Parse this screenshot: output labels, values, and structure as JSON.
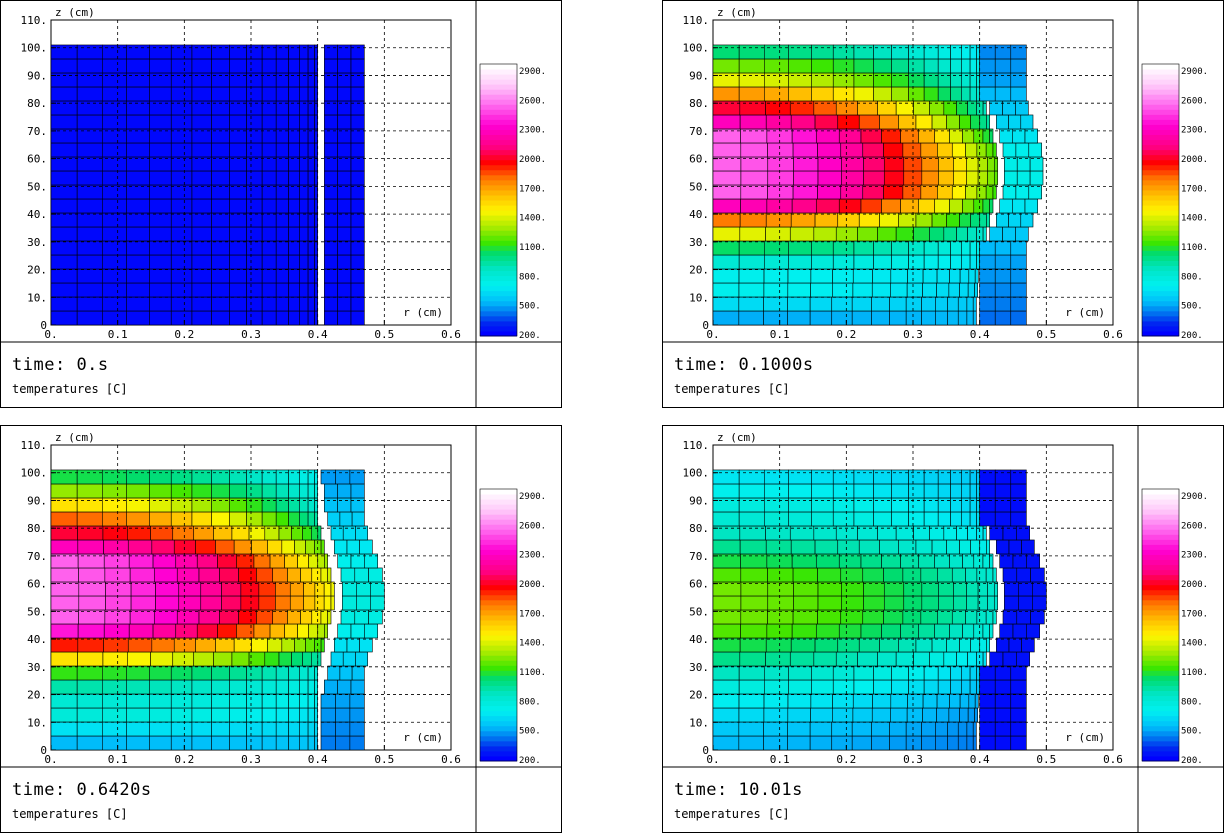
{
  "chart_data": [
    {
      "type": "heatmap",
      "time_label": "time:",
      "time_value": "0.s",
      "quantity_label": "temperatures [C]",
      "xlabel": "r (cm)",
      "ylabel": "z (cm)",
      "xlim": [
        0,
        0.6
      ],
      "ylim": [
        0,
        110
      ],
      "x_ticks": [
        "0.",
        "0.1",
        "0.2",
        "0.3",
        "0.4",
        "0.5",
        "0.6"
      ],
      "y_ticks": [
        "0",
        "10.",
        "20.",
        "30.",
        "40.",
        "50.",
        "60.",
        "70.",
        "80.",
        "90.",
        "100.",
        "110."
      ],
      "colorbar_range": [
        200,
        2900
      ],
      "colorbar_ticks": [
        "2900.",
        "2600.",
        "2300.",
        "2000.",
        "1700.",
        "1400.",
        "1100.",
        "800.",
        "500.",
        "200."
      ],
      "pellet_outer_radius": [
        0.4,
        0.4,
        0.4,
        0.4,
        0.4,
        0.4,
        0.4,
        0.4,
        0.4,
        0.4,
        0.4,
        0.4,
        0.4,
        0.4,
        0.4,
        0.4,
        0.4,
        0.4,
        0.4,
        0.4
      ],
      "clad_inner_radius": [
        0.41,
        0.41,
        0.41,
        0.41,
        0.41,
        0.41,
        0.41,
        0.41,
        0.41,
        0.41,
        0.41,
        0.41,
        0.41,
        0.41,
        0.41,
        0.41,
        0.41,
        0.41,
        0.41,
        0.41
      ],
      "clad_outer_radius": [
        0.47,
        0.47,
        0.47,
        0.47,
        0.47,
        0.47,
        0.47,
        0.47,
        0.47,
        0.47,
        0.47,
        0.47,
        0.47,
        0.47,
        0.47,
        0.47,
        0.47,
        0.47,
        0.47,
        0.47
      ],
      "center_temperature": [
        220,
        220,
        220,
        220,
        220,
        220,
        220,
        220,
        220,
        220,
        220,
        220,
        220,
        220,
        220,
        220,
        220,
        220,
        220,
        220
      ],
      "pellet_surface_temperature": [
        220,
        220,
        220,
        220,
        220,
        220,
        220,
        220,
        220,
        220,
        220,
        220,
        220,
        220,
        220,
        220,
        220,
        220,
        220,
        220
      ],
      "clad_temperature": [
        220,
        220,
        220,
        220,
        220,
        220,
        220,
        220,
        220,
        220,
        220,
        220,
        220,
        220,
        220,
        220,
        220,
        220,
        220,
        220
      ]
    },
    {
      "type": "heatmap",
      "time_label": "time:",
      "time_value": "0.1000s",
      "quantity_label": "temperatures [C]",
      "xlabel": "r (cm)",
      "ylabel": "z (cm)",
      "xlim": [
        0,
        0.6
      ],
      "ylim": [
        0,
        110
      ],
      "x_ticks": [
        "0.",
        "0.1",
        "0.2",
        "0.3",
        "0.4",
        "0.5",
        "0.6"
      ],
      "y_ticks": [
        "0",
        "10.",
        "20.",
        "30.",
        "40.",
        "50.",
        "60.",
        "70.",
        "80.",
        "90.",
        "100.",
        "110."
      ],
      "colorbar_range": [
        200,
        2900
      ],
      "colorbar_ticks": [
        "2900.",
        "2600.",
        "2300.",
        "2000.",
        "1700.",
        "1400.",
        "1100.",
        "800.",
        "500.",
        "200."
      ],
      "pellet_outer_radius": [
        0.395,
        0.395,
        0.397,
        0.398,
        0.4,
        0.4,
        0.41,
        0.415,
        0.42,
        0.425,
        0.427,
        0.427,
        0.425,
        0.42,
        0.415,
        0.41,
        0.4,
        0.4,
        0.4,
        0.4
      ],
      "clad_inner_radius": [
        0.4,
        0.4,
        0.4,
        0.4,
        0.4,
        0.4,
        0.415,
        0.425,
        0.43,
        0.435,
        0.437,
        0.437,
        0.435,
        0.43,
        0.425,
        0.415,
        0.4,
        0.4,
        0.4,
        0.4
      ],
      "clad_outer_radius": [
        0.47,
        0.47,
        0.47,
        0.47,
        0.47,
        0.47,
        0.473,
        0.48,
        0.487,
        0.493,
        0.495,
        0.495,
        0.493,
        0.487,
        0.48,
        0.473,
        0.47,
        0.47,
        0.47,
        0.47
      ],
      "center_temperature": [
        500,
        620,
        700,
        700,
        800,
        1020,
        1400,
        1760,
        2250,
        2500,
        2500,
        2500,
        2500,
        2500,
        2250,
        2000,
        1700,
        1400,
        1200,
        1000
      ],
      "pellet_surface_temperature": [
        520,
        560,
        600,
        620,
        650,
        700,
        800,
        900,
        1000,
        1100,
        1150,
        1150,
        1100,
        1000,
        900,
        850,
        800,
        760,
        700,
        650
      ],
      "clad_temperature": [
        400,
        420,
        440,
        460,
        480,
        520,
        560,
        600,
        650,
        700,
        720,
        720,
        700,
        650,
        600,
        560,
        520,
        480,
        460,
        440
      ]
    },
    {
      "type": "heatmap",
      "time_label": "time:",
      "time_value": "0.6420s",
      "quantity_label": "temperatures [C]",
      "xlabel": "r (cm)",
      "ylabel": "z (cm)",
      "xlim": [
        0,
        0.6
      ],
      "ylim": [
        0,
        110
      ],
      "x_ticks": [
        "0.",
        "0.1",
        "0.2",
        "0.3",
        "0.4",
        "0.5",
        "0.6"
      ],
      "y_ticks": [
        "0",
        "10.",
        "20.",
        "30.",
        "40.",
        "50.",
        "60.",
        "70.",
        "80.",
        "90.",
        "100.",
        "110."
      ],
      "colorbar_range": [
        200,
        2900
      ],
      "colorbar_ticks": [
        "2900.",
        "2600.",
        "2300.",
        "2000.",
        "1700.",
        "1400.",
        "1100.",
        "800.",
        "500.",
        "200."
      ],
      "pellet_outer_radius": [
        0.4,
        0.4,
        0.4,
        0.4,
        0.4,
        0.4,
        0.405,
        0.41,
        0.415,
        0.42,
        0.425,
        0.425,
        0.42,
        0.415,
        0.41,
        0.405,
        0.4,
        0.4,
        0.4,
        0.4
      ],
      "clad_inner_radius": [
        0.405,
        0.405,
        0.405,
        0.405,
        0.41,
        0.415,
        0.42,
        0.425,
        0.43,
        0.435,
        0.437,
        0.437,
        0.435,
        0.43,
        0.425,
        0.42,
        0.415,
        0.41,
        0.41,
        0.405
      ],
      "clad_outer_radius": [
        0.47,
        0.47,
        0.47,
        0.47,
        0.47,
        0.47,
        0.475,
        0.482,
        0.49,
        0.497,
        0.5,
        0.5,
        0.497,
        0.49,
        0.482,
        0.475,
        0.47,
        0.47,
        0.47,
        0.47
      ],
      "center_temperature": [
        520,
        640,
        780,
        800,
        900,
        1100,
        1500,
        1900,
        2350,
        2500,
        2500,
        2500,
        2500,
        2500,
        2250,
        2000,
        1800,
        1500,
        1250,
        1050
      ],
      "pellet_surface_temperature": [
        550,
        600,
        640,
        680,
        720,
        780,
        900,
        1100,
        1250,
        1350,
        1400,
        1400,
        1350,
        1250,
        1150,
        1000,
        900,
        800,
        750,
        700
      ],
      "clad_temperature": [
        420,
        440,
        460,
        480,
        500,
        540,
        600,
        640,
        700,
        740,
        760,
        760,
        740,
        700,
        660,
        620,
        580,
        540,
        500,
        470
      ]
    },
    {
      "type": "heatmap",
      "time_label": "time:",
      "time_value": "10.01s",
      "quantity_label": "temperatures [C]",
      "xlabel": "r (cm)",
      "ylabel": "z (cm)",
      "xlim": [
        0,
        0.6
      ],
      "ylim": [
        0,
        110
      ],
      "x_ticks": [
        "0.",
        "0.1",
        "0.2",
        "0.3",
        "0.4",
        "0.5",
        "0.6"
      ],
      "y_ticks": [
        "0",
        "10.",
        "20.",
        "30.",
        "40.",
        "50.",
        "60.",
        "70.",
        "80.",
        "90.",
        "100.",
        "110."
      ],
      "colorbar_range": [
        200,
        2900
      ],
      "colorbar_ticks": [
        "2900.",
        "2600.",
        "2300.",
        "2000.",
        "1700.",
        "1400.",
        "1100.",
        "800.",
        "500.",
        "200."
      ],
      "pellet_outer_radius": [
        0.395,
        0.395,
        0.397,
        0.398,
        0.4,
        0.4,
        0.41,
        0.415,
        0.42,
        0.425,
        0.427,
        0.427,
        0.425,
        0.42,
        0.415,
        0.41,
        0.4,
        0.4,
        0.4,
        0.4
      ],
      "clad_inner_radius": [
        0.4,
        0.4,
        0.4,
        0.4,
        0.4,
        0.4,
        0.415,
        0.425,
        0.43,
        0.435,
        0.437,
        0.437,
        0.435,
        0.43,
        0.425,
        0.415,
        0.4,
        0.4,
        0.4,
        0.4
      ],
      "clad_outer_radius": [
        0.47,
        0.47,
        0.47,
        0.47,
        0.47,
        0.47,
        0.475,
        0.482,
        0.49,
        0.497,
        0.5,
        0.5,
        0.497,
        0.49,
        0.482,
        0.475,
        0.47,
        0.47,
        0.47,
        0.47
      ],
      "center_temperature": [
        520,
        560,
        620,
        680,
        760,
        860,
        960,
        1050,
        1150,
        1200,
        1200,
        1200,
        1150,
        1050,
        950,
        860,
        800,
        760,
        700,
        650
      ],
      "pellet_surface_temperature": [
        420,
        440,
        460,
        500,
        540,
        580,
        640,
        700,
        760,
        800,
        820,
        820,
        800,
        760,
        700,
        660,
        620,
        600,
        580,
        560
      ],
      "clad_temperature": [
        230,
        230,
        230,
        230,
        235,
        235,
        240,
        240,
        245,
        245,
        245,
        245,
        245,
        240,
        240,
        235,
        235,
        230,
        230,
        230
      ]
    }
  ]
}
